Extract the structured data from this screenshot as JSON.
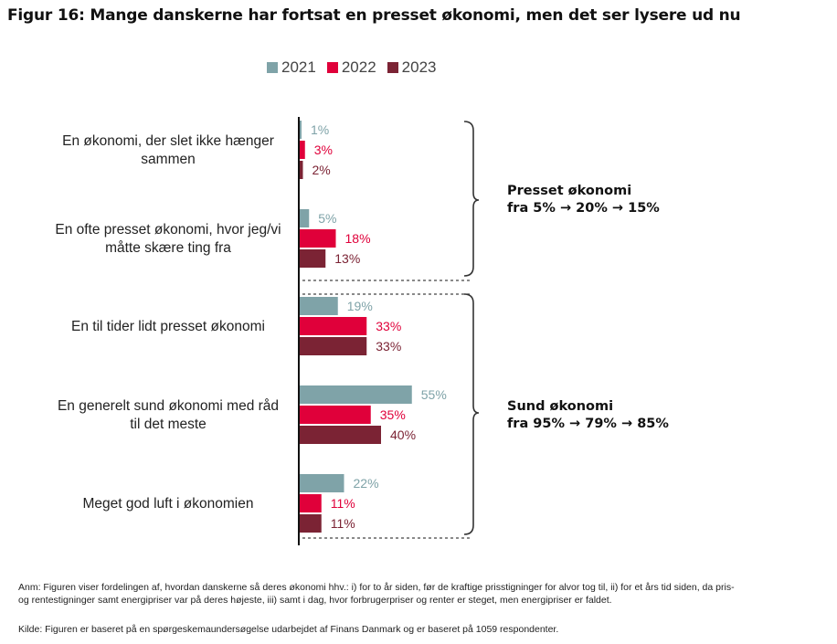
{
  "title": "Figur 16: Mange danskerne har fortsat en presset økonomi, men det ser lysere ud nu",
  "colors": {
    "2021": "#7fa3a8",
    "2022": "#e0003a",
    "2023": "#7b2334",
    "axis": "#111111",
    "bracket": "#333333"
  },
  "chart_data": {
    "type": "bar",
    "orientation": "horizontal",
    "categories": [
      "En økonomi, der slet ikke hænger sammen",
      "En ofte presset økonomi, hvor jeg/vi måtte skære ting fra",
      "En til tider lidt presset økonomi",
      "En generelt sund økonomi med råd til det meste",
      "Meget god luft i økonomien"
    ],
    "series": [
      {
        "name": "2021",
        "values": [
          1,
          5,
          19,
          55,
          22
        ]
      },
      {
        "name": "2022",
        "values": [
          3,
          18,
          33,
          35,
          11
        ]
      },
      {
        "name": "2023",
        "values": [
          2,
          13,
          33,
          40,
          11
        ]
      }
    ],
    "data_labels": [
      [
        "1%",
        "3%",
        "2%"
      ],
      [
        "5%",
        "18%",
        "13%"
      ],
      [
        "19%",
        "33%",
        "33%"
      ],
      [
        "55%",
        "35%",
        "40%"
      ],
      [
        "22%",
        "11%",
        "11%"
      ]
    ],
    "category_lines": [
      [
        "En økonomi, der slet ikke hænger",
        "sammen"
      ],
      [
        "En ofte presset økonomi, hvor jeg/vi",
        "måtte skære ting fra"
      ],
      [
        "En til tider lidt presset økonomi"
      ],
      [
        "En generelt sund økonomi med råd",
        "til det meste"
      ],
      [
        "Meget god luft i økonomien"
      ]
    ],
    "legend_position": "top",
    "grid": false,
    "annotations": [
      {
        "title": "Presset økonomi",
        "text": "fra 5% → 20% → 15%",
        "groups": [
          0,
          1
        ]
      },
      {
        "title": "Sund økonomi",
        "text": "fra 95% → 79% → 85%",
        "groups": [
          2,
          3,
          4
        ]
      }
    ]
  },
  "notes": {
    "anm_line1": "Anm: Figuren viser fordelingen af, hvordan danskerne så deres økonomi hhv.: i) for to år siden, før de kraftige prisstigninger for alvor tog til, ii) for et års tid siden, da pris-",
    "anm_line2": "og rentestigninger samt energipriser var på deres højeste, iii) samt i dag, hvor forbrugerpriser og renter er steget, men energipriser er faldet.",
    "kilde": "Kilde: Figuren er baseret på en spørgeskemaundersøgelse udarbejdet af Finans Danmark og er baseret på 1059 respondenter."
  }
}
